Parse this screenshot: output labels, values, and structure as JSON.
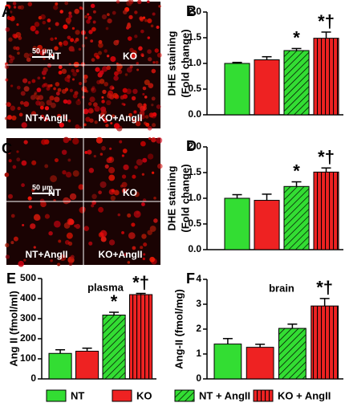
{
  "images": [
    {
      "panel": "A",
      "scale_bar": "50 µm",
      "labels": [
        "NT",
        "KO",
        "NT+AngII",
        "KO+AngII"
      ]
    },
    {
      "panel": "C",
      "scale_bar": "50 µm",
      "labels": [
        "NT",
        "KO",
        "NT+AngII",
        "KO+AngII"
      ]
    }
  ],
  "legend": [
    {
      "name": "NT",
      "color": "#33dd33",
      "pattern": "solid"
    },
    {
      "name": "KO",
      "color": "#ee2222",
      "pattern": "solid"
    },
    {
      "name": "NT + AngII",
      "color": "#33dd33",
      "pattern": "diagonal"
    },
    {
      "name": "KO + AngII",
      "color": "#ee2222",
      "pattern": "vertical"
    }
  ],
  "chart_data": [
    {
      "type": "bar",
      "panel": "B",
      "ylabel": [
        "DHE staining",
        "(Fold change)"
      ],
      "ylim": [
        0,
        2
      ],
      "yticks": [
        {
          "value": 0,
          "label": "0.0"
        },
        0.5,
        {
          "value": 1,
          "label": "1.0"
        },
        1.5,
        {
          "value": 2,
          "label": "2.0"
        }
      ],
      "values": [
        1.0,
        1.07,
        1.25,
        1.49
      ],
      "errors": [
        0.02,
        0.06,
        0.04,
        0.12
      ],
      "annotations": [
        null,
        null,
        "*",
        "*†"
      ]
    },
    {
      "type": "bar",
      "panel": "D",
      "ylabel": [
        "DHE staining",
        "(Fold change)"
      ],
      "ylim": [
        0,
        2
      ],
      "yticks": [
        {
          "value": 0,
          "label": "0.0"
        },
        0.5,
        {
          "value": 1,
          "label": "1.0"
        },
        1.5,
        {
          "value": 2,
          "label": "2.0"
        }
      ],
      "values": [
        1.0,
        0.96,
        1.23,
        1.51
      ],
      "errors": [
        0.07,
        0.12,
        0.09,
        0.08
      ],
      "annotations": [
        null,
        null,
        "*",
        "*†"
      ]
    },
    {
      "type": "bar",
      "panel": "E",
      "title": "plasma",
      "ylabel": [
        "Ang II (fmol/ml)"
      ],
      "ylim": [
        0,
        500
      ],
      "yticks": [
        0,
        100,
        200,
        300,
        400,
        500
      ],
      "values": [
        127,
        138,
        318,
        420
      ],
      "errors": [
        18,
        15,
        14,
        6
      ],
      "annotations": [
        null,
        null,
        "*",
        "*†"
      ]
    },
    {
      "type": "bar",
      "panel": "F",
      "title": "brain",
      "ylabel": [
        "Ang-II (fmol/mg)"
      ],
      "ylim": [
        0,
        4
      ],
      "yticks": [
        0,
        1,
        2,
        3,
        4
      ],
      "values": [
        1.4,
        1.27,
        2.03,
        2.93
      ],
      "errors": [
        0.22,
        0.12,
        0.17,
        0.3
      ],
      "annotations": [
        null,
        null,
        null,
        "*†"
      ]
    }
  ]
}
